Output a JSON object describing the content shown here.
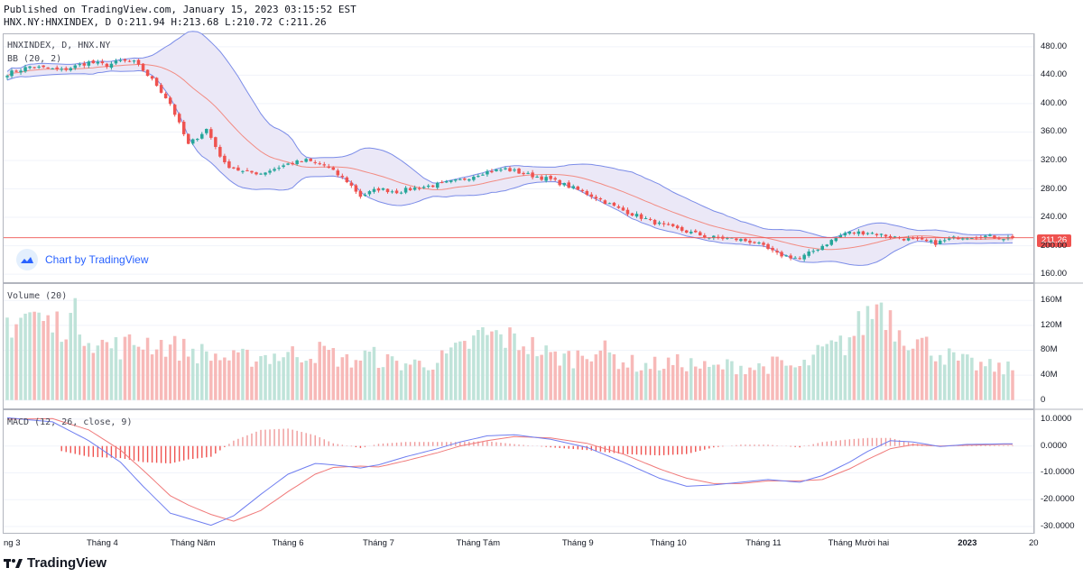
{
  "header": {
    "published_line": "Published on TradingView.com, January 15, 2023 03:15:52 EST",
    "ohlc_line": "HNX.NY:HNXINDEX, D O:211.94 H:213.68 L:210.72 C:211.26"
  },
  "legends": {
    "main_symbol": "HNXINDEX, D, HNX.NY",
    "bb": "BB (20, 2)",
    "volume": "Volume (20)",
    "macd": "MACD (12, 26, close, 9)"
  },
  "watermark": "Chart by TradingView",
  "brand": "TradingView",
  "last_price_tag": "211.26",
  "colors": {
    "up": "#26a69a",
    "down": "#ef5350",
    "bb_fill": "#ebe8f7",
    "bb_band": "#7b8ce8",
    "basis": "#f28b82",
    "macd_line": "#6f7ef0",
    "signal_line": "#f07a7a",
    "grid": "#f0f3fa"
  },
  "chart_data": [
    {
      "type": "candlestick",
      "title": "HNXINDEX, D, HNX.NY",
      "indicators": [
        "BB (20, 2)"
      ],
      "ylim": [
        150,
        495
      ],
      "y_ticks": [
        "480.00",
        "440.00",
        "400.00",
        "360.00",
        "320.00",
        "280.00",
        "240.00",
        "200.00",
        "160.00"
      ],
      "y_tick_values": [
        480,
        440,
        400,
        360,
        320,
        280,
        240,
        200,
        160
      ],
      "last_close": 211.26,
      "x_ticks": [
        "ng 3",
        "Tháng 4",
        "Tháng Năm",
        "Tháng 6",
        "Tháng 7",
        "Tháng Tám",
        "Tháng 9",
        "Tháng 10",
        "Tháng 11",
        "Tháng Mười hai",
        "2023",
        "20"
      ],
      "x_tick_days": [
        0,
        21,
        41,
        62,
        82,
        104,
        126,
        146,
        167,
        188,
        212,
        229
      ],
      "close_anchor_days": [
        0,
        5,
        12,
        18,
        22,
        25,
        28,
        30,
        33,
        36,
        40,
        44,
        48,
        52,
        56,
        62,
        66,
        70,
        75,
        78,
        82,
        86,
        90,
        95,
        100,
        105,
        110,
        115,
        120,
        125,
        130,
        135,
        140,
        145,
        150,
        155,
        160,
        165,
        170,
        175,
        180,
        185,
        190,
        195,
        200,
        205,
        210,
        215,
        220
      ],
      "close_anchor_values": [
        442,
        452,
        447,
        458,
        454,
        460,
        458,
        447,
        426,
        400,
        342,
        364,
        315,
        304,
        302,
        315,
        320,
        313,
        291,
        270,
        280,
        276,
        281,
        286,
        292,
        303,
        308,
        300,
        293,
        281,
        268,
        252,
        240,
        228,
        220,
        212,
        210,
        205,
        188,
        182,
        200,
        218,
        219,
        213,
        208,
        204,
        212,
        214,
        211
      ]
    },
    {
      "type": "bar",
      "title": "Volume (20)",
      "unit": "M",
      "ylim": [
        -12,
        185
      ],
      "y_ticks": [
        "160M",
        "120M",
        "80M",
        "40M",
        "0"
      ],
      "y_tick_values": [
        160,
        120,
        80,
        40,
        0
      ],
      "anchor_days": [
        0,
        5,
        10,
        15,
        20,
        25,
        30,
        35,
        40,
        45,
        50,
        55,
        60,
        65,
        70,
        75,
        80,
        85,
        90,
        95,
        100,
        105,
        110,
        115,
        120,
        125,
        130,
        135,
        140,
        145,
        150,
        155,
        160,
        165,
        170,
        175,
        180,
        185,
        190,
        193,
        196,
        200,
        205,
        210,
        215,
        220
      ],
      "anchor_values": [
        125,
        140,
        118,
        132,
        90,
        85,
        95,
        88,
        80,
        72,
        65,
        70,
        72,
        75,
        78,
        62,
        72,
        60,
        58,
        62,
        80,
        105,
        100,
        90,
        70,
        68,
        85,
        65,
        55,
        58,
        60,
        50,
        56,
        52,
        58,
        50,
        78,
        90,
        135,
        160,
        120,
        98,
        80,
        62,
        55,
        50
      ]
    },
    {
      "type": "line",
      "title": "MACD (12, 26, close, 9)",
      "series": [
        {
          "name": "MACD",
          "anchor_days": [
            0,
            10,
            18,
            25,
            30,
            36,
            40,
            45,
            50,
            56,
            62,
            68,
            72,
            78,
            82,
            88,
            95,
            100,
            106,
            112,
            120,
            128,
            136,
            144,
            150,
            156,
            162,
            168,
            175,
            180,
            186,
            190,
            195,
            200,
            206,
            212,
            220
          ],
          "anchor_values": [
            10.5,
            9.0,
            2.0,
            -6.0,
            -15.0,
            -25.0,
            -27.0,
            -29.5,
            -26.0,
            -18.0,
            -10.5,
            -6.5,
            -7.0,
            -8.2,
            -7.0,
            -4.0,
            -1.0,
            1.5,
            3.8,
            4.2,
            2.5,
            -0.5,
            -6.0,
            -12.0,
            -15.0,
            -14.5,
            -13.5,
            -12.5,
            -13.5,
            -11.0,
            -6.0,
            -2.0,
            2.0,
            1.5,
            -0.2,
            0.6,
            0.8
          ]
        },
        {
          "name": "Signal",
          "anchor_days": [
            0,
            10,
            18,
            25,
            30,
            36,
            40,
            45,
            50,
            56,
            62,
            68,
            72,
            78,
            82,
            88,
            95,
            100,
            106,
            112,
            120,
            128,
            136,
            144,
            150,
            156,
            162,
            168,
            175,
            180,
            186,
            190,
            195,
            200,
            206,
            212,
            220
          ],
          "anchor_values": [
            10.0,
            10.2,
            6.0,
            -1.5,
            -9.0,
            -18.5,
            -22.0,
            -25.5,
            -28.0,
            -24.0,
            -17.0,
            -10.5,
            -8.0,
            -7.5,
            -7.8,
            -5.5,
            -2.5,
            0.0,
            2.0,
            3.5,
            3.0,
            1.0,
            -3.0,
            -8.5,
            -12.0,
            -14.0,
            -14.0,
            -13.0,
            -13.0,
            -12.5,
            -8.5,
            -5.0,
            -1.0,
            0.5,
            0.0,
            0.3,
            0.6
          ]
        }
      ],
      "ylim": [
        -32,
        13
      ],
      "y_ticks": [
        "10.0000",
        "0.0000",
        "-10.0000",
        "-20.0000",
        "-30.0000"
      ],
      "y_tick_values": [
        10,
        0,
        -10,
        -20,
        -30
      ]
    }
  ]
}
